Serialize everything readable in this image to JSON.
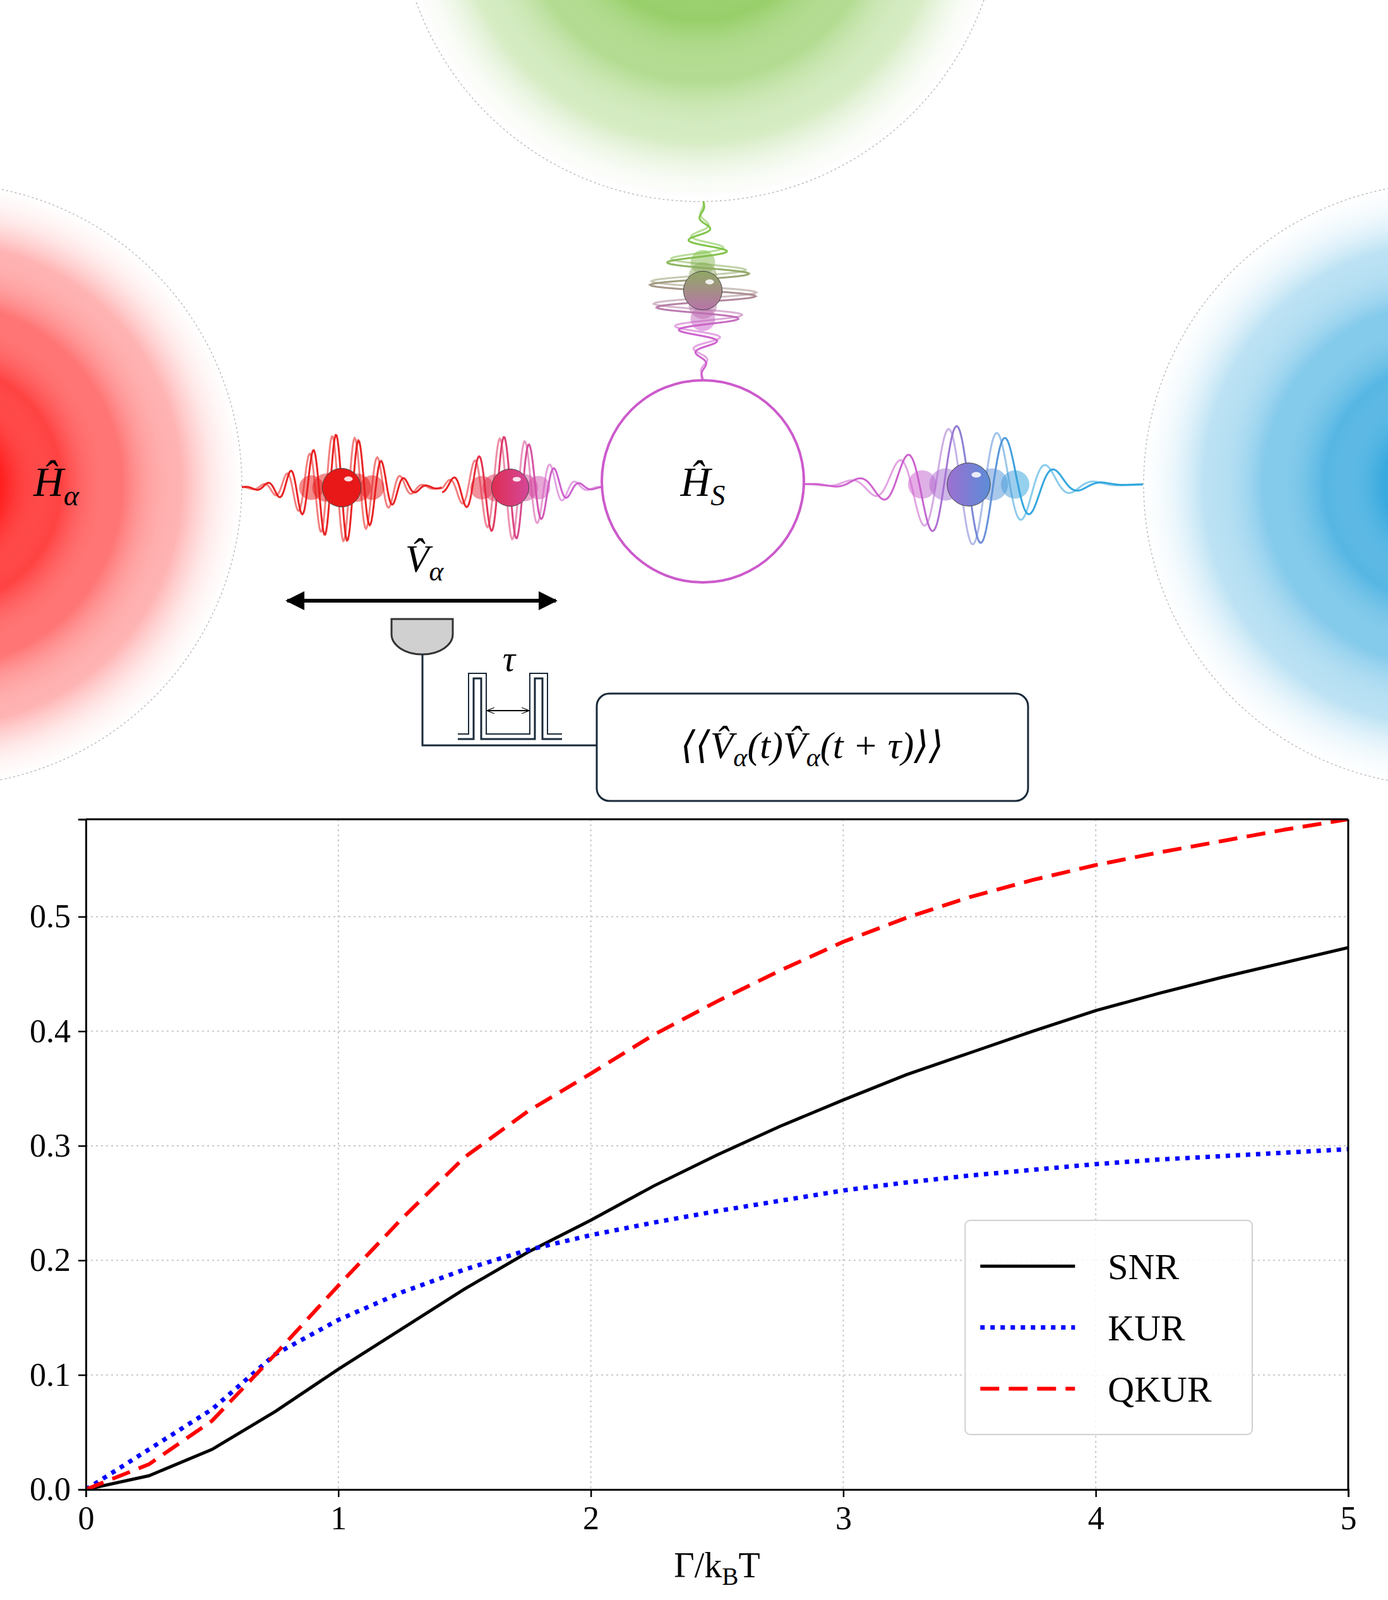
{
  "diagram": {
    "reservoir_label": [
      {
        "text": "Ĥ"
      },
      {
        "sub": "α"
      }
    ],
    "system_label": [
      {
        "text": "Ĥ"
      },
      {
        "sub": "S"
      }
    ],
    "coupling_label": [
      {
        "text": "V̂"
      },
      {
        "sub": "α"
      }
    ],
    "delay_label": [
      {
        "text": "τ"
      }
    ],
    "correlator": [
      {
        "text": "⟨⟨V̂"
      },
      {
        "sub": "α"
      },
      {
        "text": "(t)V̂"
      },
      {
        "sub": "α"
      },
      {
        "text": "(t + τ)⟩⟩"
      }
    ]
  },
  "chart_data": {
    "type": "line",
    "xlabel": [
      {
        "text": "Γ/k"
      },
      {
        "sub": "B"
      },
      {
        "text": "T"
      }
    ],
    "x": [
      0,
      0.25,
      0.5,
      0.75,
      1,
      1.25,
      1.5,
      1.75,
      2,
      2.25,
      2.5,
      2.75,
      3,
      3.25,
      3.5,
      3.75,
      4,
      4.25,
      4.5,
      4.75,
      5
    ],
    "series": [
      {
        "name": "SNR",
        "color": "#000000",
        "line_style": "solid",
        "values": [
          0,
          0.012,
          0.035,
          0.068,
          0.105,
          0.14,
          0.175,
          0.207,
          0.235,
          0.265,
          0.292,
          0.317,
          0.34,
          0.362,
          0.381,
          0.4,
          0.418,
          0.433,
          0.447,
          0.46,
          0.473
        ]
      },
      {
        "name": "KUR",
        "color": "#0000ff",
        "line_style": "dotted",
        "values": [
          0,
          0.035,
          0.07,
          0.118,
          0.148,
          0.172,
          0.192,
          0.209,
          0.222,
          0.233,
          0.243,
          0.252,
          0.261,
          0.268,
          0.274,
          0.279,
          0.284,
          0.288,
          0.291,
          0.294,
          0.297
        ]
      },
      {
        "name": "QKUR",
        "color": "#ff0000",
        "line_style": "dashed",
        "values": [
          0,
          0.022,
          0.06,
          0.118,
          0.178,
          0.236,
          0.29,
          0.33,
          0.363,
          0.397,
          0.426,
          0.453,
          0.478,
          0.499,
          0.517,
          0.532,
          0.545,
          0.556,
          0.566,
          0.576,
          0.585
        ]
      }
    ],
    "xlim": [
      0,
      5
    ],
    "xticks": [
      0,
      1,
      2,
      3,
      4,
      5
    ],
    "ylim": [
      0,
      0.585
    ],
    "yticks": [
      {
        "value": 0,
        "label": "0.0"
      },
      {
        "value": 0.1,
        "label": "0.1"
      },
      {
        "value": 0.2,
        "label": "0.2"
      },
      {
        "value": 0.3,
        "label": "0.3"
      },
      {
        "value": 0.4,
        "label": "0.4"
      },
      {
        "value": 0.5,
        "label": "0.5"
      }
    ],
    "grid": true,
    "legend": "lower right"
  }
}
